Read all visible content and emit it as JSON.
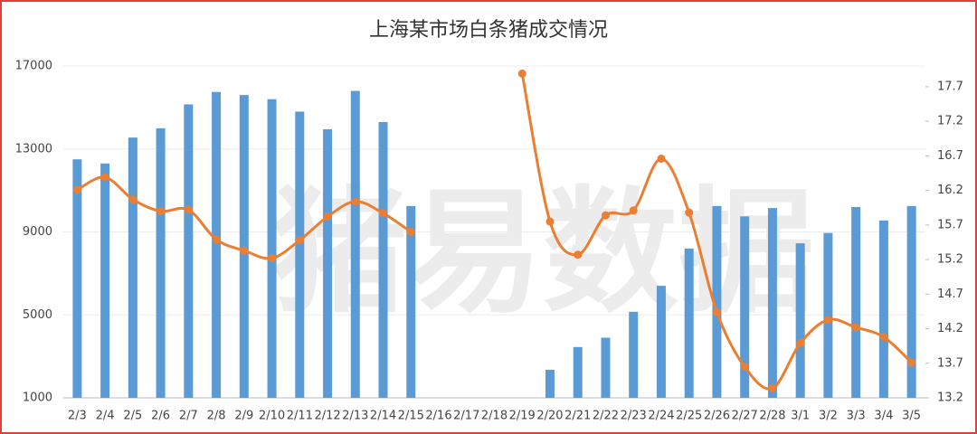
{
  "chart_data": {
    "type": "bar-line",
    "title": "上海某市场白条猪成交情况",
    "watermark": "猪易数据",
    "categories": [
      "2/3",
      "2/4",
      "2/5",
      "2/6",
      "2/7",
      "2/8",
      "2/9",
      "2/10",
      "2/11",
      "2/12",
      "2/13",
      "2/14",
      "2/15",
      "2/16",
      "2/17",
      "2/18",
      "2/19",
      "2/20",
      "2/21",
      "2/22",
      "2/23",
      "2/24",
      "2/25",
      "2/26",
      "2/27",
      "2/28",
      "3/1",
      "3/2",
      "3/3",
      "3/4",
      "3/5"
    ],
    "series": [
      {
        "type": "bar",
        "color": "#5b9bd5",
        "values": [
          12500,
          12300,
          13550,
          14000,
          15150,
          15750,
          15600,
          15400,
          14800,
          13950,
          15800,
          14300,
          10250,
          null,
          null,
          null,
          null,
          2350,
          3450,
          3900,
          5150,
          6400,
          8200,
          10250,
          9750,
          10150,
          8450,
          8950,
          10200,
          9550,
          10250
        ]
      },
      {
        "type": "line",
        "axis": "y2",
        "color": "#ed7d31",
        "smooth": true,
        "values": [
          16.21,
          16.39,
          16.07,
          15.9,
          15.92,
          15.49,
          15.33,
          15.22,
          15.48,
          15.82,
          16.04,
          15.87,
          15.6,
          null,
          null,
          null,
          17.89,
          15.75,
          15.27,
          15.84,
          15.91,
          16.66,
          15.88,
          14.44,
          13.65,
          13.34,
          13.99,
          14.33,
          14.22,
          14.08,
          13.71
        ]
      }
    ],
    "ylim": [
      1000,
      17000
    ],
    "yticks": [
      1000,
      5000,
      9000,
      13000,
      17000
    ],
    "y2lim": [
      13.2,
      18.0
    ],
    "y2ticks": [
      13.2,
      13.7,
      14.2,
      14.7,
      15.2,
      15.7,
      16.2,
      16.7,
      17.2,
      17.7
    ],
    "grid": true
  }
}
